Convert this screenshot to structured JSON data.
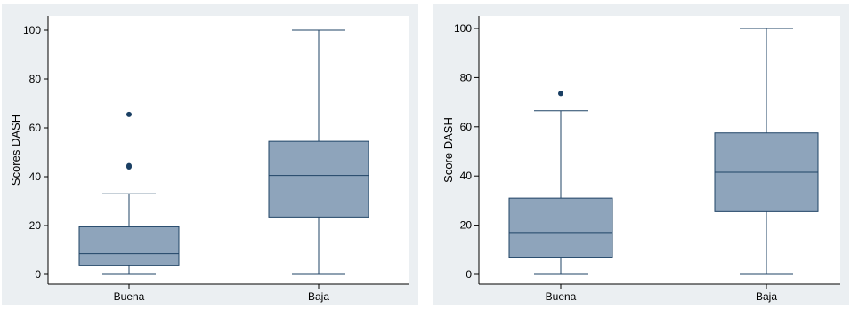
{
  "chart_data": [
    {
      "type": "box",
      "title": "",
      "xlabel": "",
      "ylabel": "Scores DASH",
      "ylim": [
        0,
        100
      ],
      "yticks": [
        "0",
        "20",
        "40",
        "60",
        "80",
        "100"
      ],
      "categories": [
        "Buena",
        "Baja"
      ],
      "boxes": [
        {
          "category": "Buena",
          "whisker_low": 0,
          "q1": 3.5,
          "median": 8.5,
          "q3": 19.5,
          "whisker_high": 33,
          "outliers": [
            44,
            44.5,
            65.5
          ]
        },
        {
          "category": "Baja",
          "whisker_low": 0,
          "q1": 23.5,
          "median": 40.5,
          "q3": 54.5,
          "whisker_high": 100,
          "outliers": []
        }
      ],
      "colors": {
        "box_fill": "#8ea4bb",
        "box_stroke": "#1f4366",
        "outlier": "#1a3f63",
        "background": "#ebeff2"
      }
    },
    {
      "type": "box",
      "title": "",
      "xlabel": "",
      "ylabel": "Score DASH",
      "ylim": [
        0,
        100
      ],
      "yticks": [
        "0",
        "20",
        "40",
        "60",
        "80",
        "100"
      ],
      "categories": [
        "Buena",
        "Baja"
      ],
      "boxes": [
        {
          "category": "Buena",
          "whisker_low": 0,
          "q1": 7,
          "median": 17,
          "q3": 31,
          "whisker_high": 66.5,
          "outliers": [
            73.5
          ]
        },
        {
          "category": "Baja",
          "whisker_low": 0,
          "q1": 25.5,
          "median": 41.5,
          "q3": 57.5,
          "whisker_high": 100,
          "outliers": []
        }
      ],
      "colors": {
        "box_fill": "#8ea4bb",
        "box_stroke": "#1f4366",
        "outlier": "#1a3f63",
        "background": "#ebeff2"
      }
    }
  ]
}
